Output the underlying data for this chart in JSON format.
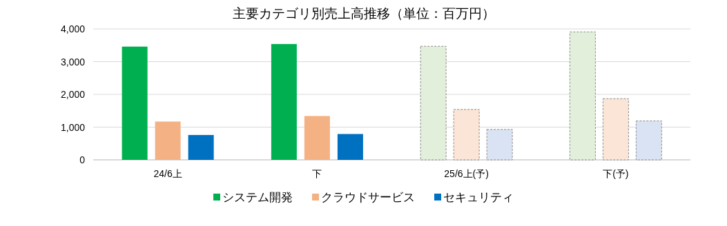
{
  "chart_data": {
    "type": "bar",
    "title": "主要カテゴリ別売上高推移（単位：百万円）",
    "categories": [
      "24/6上",
      "下",
      "25/6上(予)",
      "下(予)"
    ],
    "series": [
      {
        "name": "システム開発",
        "color": "#00b050",
        "colors": [
          "#00b050",
          "#00b050",
          "#e2efda",
          "#e2efda"
        ],
        "values": [
          3460,
          3540,
          3470,
          3910
        ]
      },
      {
        "name": "クラウドサービス",
        "color": "#f4b183",
        "colors": [
          "#f4b183",
          "#f4b183",
          "#fbe5d6",
          "#fbe5d6"
        ],
        "values": [
          1170,
          1340,
          1540,
          1870
        ]
      },
      {
        "name": "セキュリティ",
        "color": "#0070c0",
        "colors": [
          "#0070c0",
          "#0070c0",
          "#dae3f3",
          "#dae3f3"
        ],
        "values": [
          760,
          790,
          930,
          1190
        ]
      }
    ],
    "ylim": [
      0,
      4000
    ],
    "yticks": [
      {
        "value": 0,
        "label": "0"
      },
      {
        "value": 1000,
        "label": "1,000"
      },
      {
        "value": 2000,
        "label": "2,000"
      },
      {
        "value": 3000,
        "label": "3,000"
      },
      {
        "value": 4000,
        "label": "4,000"
      }
    ],
    "grid": "y",
    "legend": "bottom"
  }
}
